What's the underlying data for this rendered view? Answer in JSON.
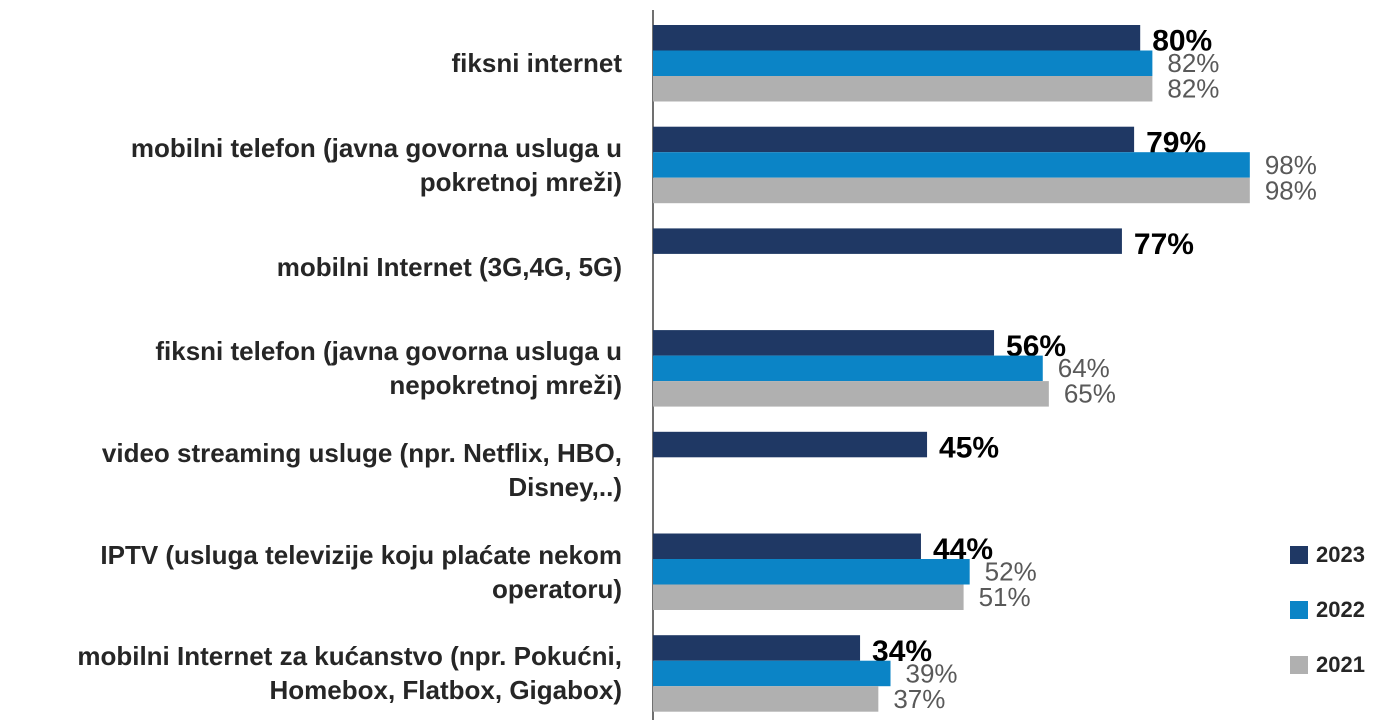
{
  "chart_data": {
    "type": "bar",
    "orientation": "horizontal",
    "categories": [
      "fiksni internet",
      "mobilni telefon (javna govorna usluga u pokretnoj mreži)",
      "mobilni Internet (3G,4G, 5G)",
      "fiksni telefon (javna govorna usluga u nepokretnoj mreži)",
      "video streaming usluge (npr. Netflix, HBO, Disney,..)",
      "IPTV (usluga televizije koju plaćate nekom operatoru)",
      "mobilni Internet za kućanstvo (npr. Pokućni, Homebox, Flatbox, Gigabox)"
    ],
    "series": [
      {
        "name": "2023",
        "color": "#1f3864",
        "values": [
          80,
          79,
          77,
          56,
          45,
          44,
          34
        ],
        "value_labels": [
          "80%",
          "79%",
          "77%",
          "56%",
          "45%",
          "44%",
          "34%"
        ]
      },
      {
        "name": "2022",
        "color": "#0b84c6",
        "values": [
          82,
          98,
          null,
          64,
          null,
          52,
          39
        ],
        "value_labels": [
          "82%",
          "98%",
          null,
          "64%",
          null,
          "52%",
          "39%"
        ]
      },
      {
        "name": "2021",
        "color": "#b0b0b0",
        "values": [
          82,
          98,
          null,
          65,
          null,
          51,
          37
        ],
        "value_labels": [
          "82%",
          "98%",
          null,
          "65%",
          null,
          "51%",
          "37%"
        ]
      }
    ],
    "legend": "right-bottom"
  }
}
